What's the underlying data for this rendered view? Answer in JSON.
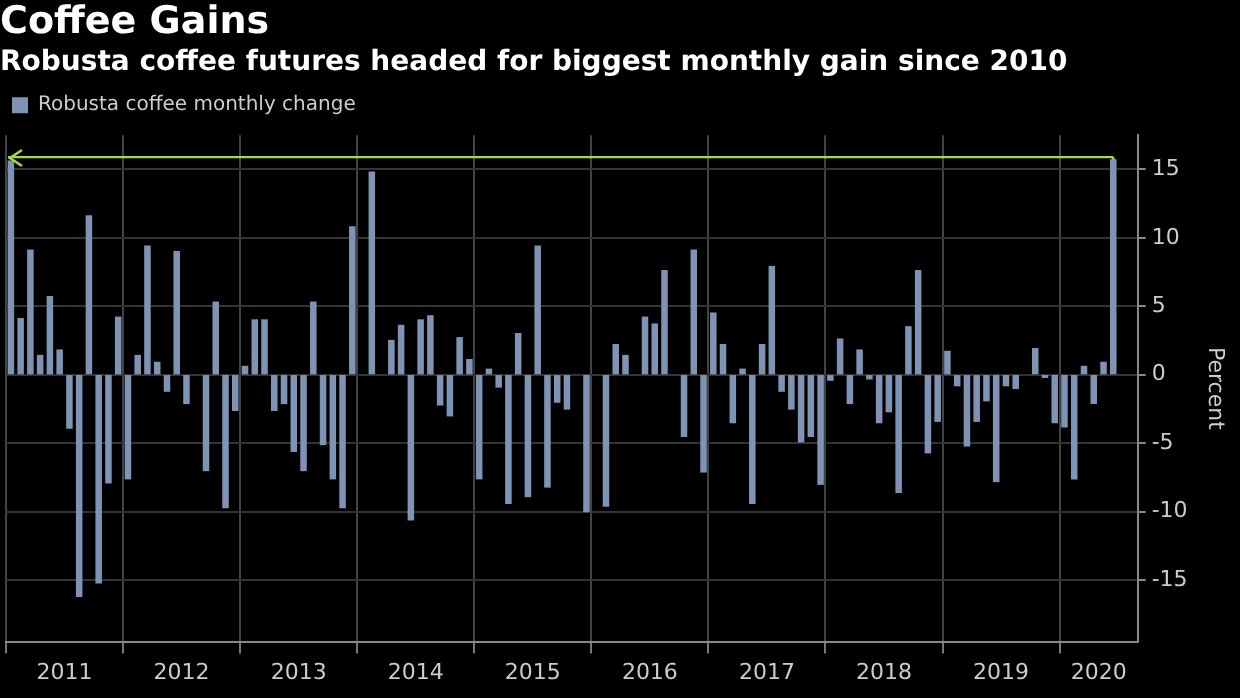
{
  "chart_data": {
    "type": "bar",
    "title": "Coffee Gains",
    "subtitle": "Robusta coffee futures headed for biggest monthly gain since 2010",
    "ylabel": "Percent",
    "x": [
      "2011-01",
      "2011-02",
      "2011-03",
      "2011-04",
      "2011-05",
      "2011-06",
      "2011-07",
      "2011-08",
      "2011-09",
      "2011-10",
      "2011-11",
      "2011-12",
      "2012-01",
      "2012-02",
      "2012-03",
      "2012-04",
      "2012-05",
      "2012-06",
      "2012-07",
      "2012-08",
      "2012-09",
      "2012-10",
      "2012-11",
      "2012-12",
      "2013-01",
      "2013-02",
      "2013-03",
      "2013-04",
      "2013-05",
      "2013-06",
      "2013-07",
      "2013-08",
      "2013-09",
      "2013-10",
      "2013-11",
      "2013-12",
      "2014-01",
      "2014-02",
      "2014-03",
      "2014-04",
      "2014-05",
      "2014-06",
      "2014-07",
      "2014-08",
      "2014-09",
      "2014-10",
      "2014-11",
      "2014-12",
      "2015-01",
      "2015-02",
      "2015-03",
      "2015-04",
      "2015-05",
      "2015-06",
      "2015-07",
      "2015-08",
      "2015-09",
      "2015-10",
      "2015-11",
      "2015-12",
      "2016-01",
      "2016-02",
      "2016-03",
      "2016-04",
      "2016-05",
      "2016-06",
      "2016-07",
      "2016-08",
      "2016-09",
      "2016-10",
      "2016-11",
      "2016-12",
      "2017-01",
      "2017-02",
      "2017-03",
      "2017-04",
      "2017-05",
      "2017-06",
      "2017-07",
      "2017-08",
      "2017-09",
      "2017-10",
      "2017-11",
      "2017-12",
      "2018-01",
      "2018-02",
      "2018-03",
      "2018-04",
      "2018-05",
      "2018-06",
      "2018-07",
      "2018-08",
      "2018-09",
      "2018-10",
      "2018-11",
      "2018-12",
      "2019-01",
      "2019-02",
      "2019-03",
      "2019-04",
      "2019-05",
      "2019-06",
      "2019-07",
      "2019-08",
      "2019-09",
      "2019-10",
      "2019-11",
      "2019-12",
      "2020-01",
      "2020-02",
      "2020-03",
      "2020-04",
      "2020-05",
      "2020-06"
    ],
    "series": [
      {
        "name": "Robusta coffee monthly change",
        "color": "#7f93b5",
        "values": [
          15.6,
          4.1,
          9.1,
          1.4,
          5.7,
          1.8,
          -3.9,
          -16.2,
          11.6,
          -15.2,
          -7.9,
          4.2,
          -7.6,
          1.4,
          9.4,
          0.9,
          -1.2,
          9.0,
          -2.1,
          null,
          -7.0,
          5.3,
          -9.7,
          -2.6,
          0.6,
          4.0,
          4.0,
          -2.6,
          -2.1,
          -5.6,
          -7.0,
          5.3,
          -5.1,
          -7.6,
          -9.7,
          10.8,
          null,
          14.8,
          null,
          2.5,
          3.6,
          -10.6,
          4.0,
          4.3,
          -2.2,
          -3.0,
          2.7,
          1.1,
          -7.6,
          0.4,
          -0.9,
          -9.4,
          3.0,
          -8.9,
          9.4,
          -8.2,
          -2.0,
          -2.5,
          null,
          -10.0,
          null,
          -9.6,
          2.2,
          1.4,
          null,
          4.2,
          3.7,
          7.6,
          null,
          -4.5,
          9.1,
          -7.1,
          4.5,
          2.2,
          -3.5,
          0.4,
          -9.4,
          2.2,
          7.9,
          -1.2,
          -2.5,
          -4.9,
          -4.5,
          -8.0,
          -0.4,
          2.6,
          -2.1,
          1.8,
          -0.3,
          -3.5,
          -2.7,
          -8.6,
          3.5,
          7.6,
          -5.7,
          -3.4,
          1.7,
          -0.8,
          -5.2,
          -3.4,
          -1.9,
          -7.8,
          -0.8,
          -1.0,
          null,
          1.9,
          -0.2,
          -3.5,
          -3.8,
          -7.6,
          0.6,
          -2.1,
          0.9,
          15.7
        ]
      }
    ],
    "xlim": [
      "2011-01",
      "2020-09"
    ],
    "xticks": [
      {
        "value": "2011-01",
        "label": null
      },
      {
        "value": "2011-07",
        "label": "2011"
      },
      {
        "value": "2012-01",
        "label": null
      },
      {
        "value": "2012-07",
        "label": "2012"
      },
      {
        "value": "2013-01",
        "label": null
      },
      {
        "value": "2013-07",
        "label": "2013"
      },
      {
        "value": "2014-01",
        "label": null
      },
      {
        "value": "2014-07",
        "label": "2014"
      },
      {
        "value": "2015-01",
        "label": null
      },
      {
        "value": "2015-07",
        "label": "2015"
      },
      {
        "value": "2016-01",
        "label": null
      },
      {
        "value": "2016-07",
        "label": "2016"
      },
      {
        "value": "2017-01",
        "label": null
      },
      {
        "value": "2017-07",
        "label": "2017"
      },
      {
        "value": "2018-01",
        "label": null
      },
      {
        "value": "2018-07",
        "label": "2018"
      },
      {
        "value": "2019-01",
        "label": null
      },
      {
        "value": "2019-07",
        "label": "2019"
      },
      {
        "value": "2020-01",
        "label": null
      },
      {
        "value": "2020-05",
        "label": "2020"
      }
    ],
    "ylim": [
      -19.5,
      17.5
    ],
    "yticks": [
      -15,
      -10,
      -5,
      0,
      5,
      10,
      15
    ],
    "ref_lines": [
      {
        "axis": "y",
        "value": 15.9,
        "color": "#a6d64a"
      }
    ],
    "grid": true,
    "legend": "top left"
  }
}
